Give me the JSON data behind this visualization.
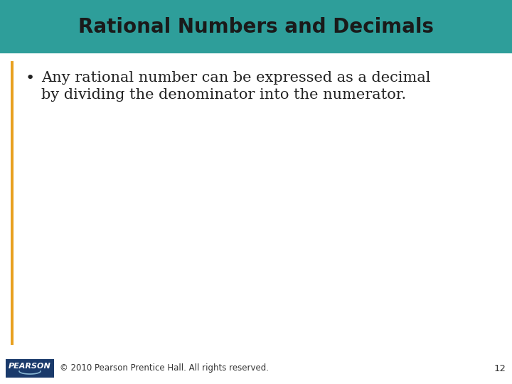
{
  "title": "Rational Numbers and Decimals",
  "title_bg_color": "#2E9E9A",
  "title_text_color": "#1a1a1a",
  "title_fontsize": 20,
  "body_bg_color": "#FFFFFF",
  "bullet_text_line1": "Any rational number can be expressed as a decimal",
  "bullet_text_line2": "by dividing the denominator into the numerator.",
  "bullet_fontsize": 15,
  "bullet_color": "#222222",
  "dash_color": "#FFFFFF",
  "left_bar_color": "#E8A020",
  "footer_text": "© 2010 Pearson Prentice Hall. All rights reserved.",
  "footer_page": "12",
  "footer_fontsize": 8.5,
  "pearson_bg": "#1a3a6b",
  "pearson_text": "PEARSON"
}
